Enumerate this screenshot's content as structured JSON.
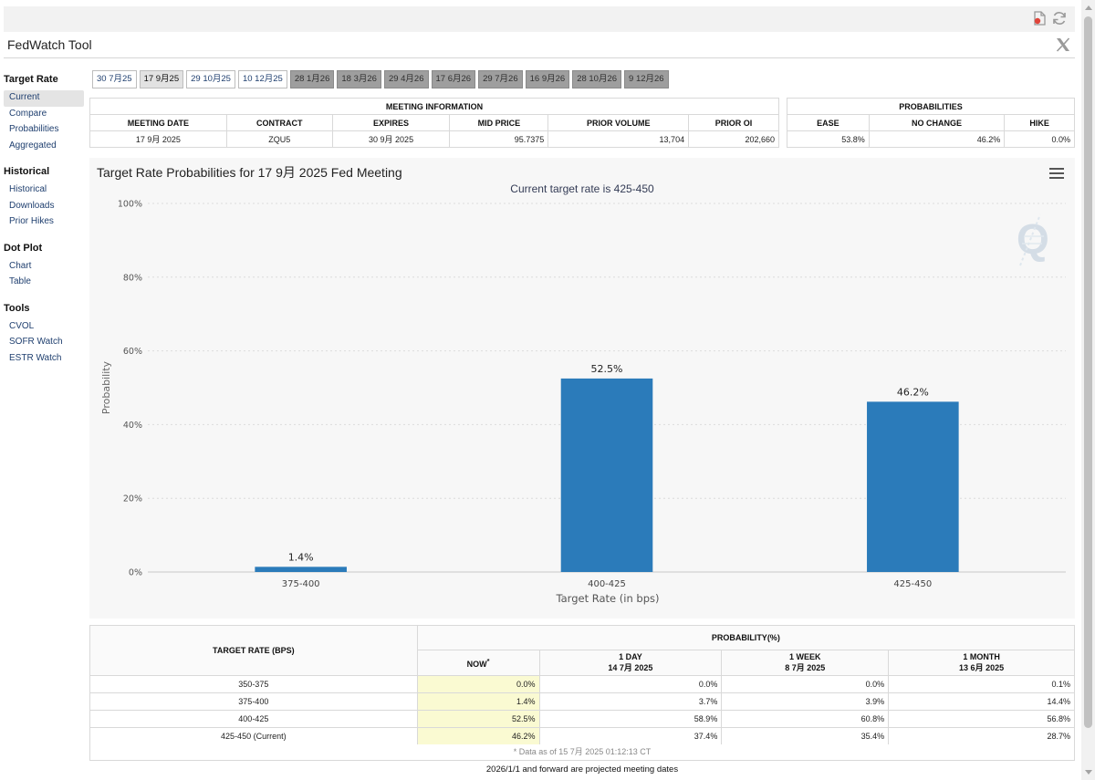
{
  "app": {
    "title": "FedWatch Tool"
  },
  "icons": {
    "pdf": "pdf-icon",
    "refresh": "refresh-icon",
    "x": "x-logo-icon",
    "menu": "hamburger-menu-icon",
    "watermark": "quikstrike-q-icon"
  },
  "sidebar": {
    "groups": [
      {
        "title": "Target Rate",
        "items": [
          "Current",
          "Compare",
          "Probabilities",
          "Aggregated"
        ]
      },
      {
        "title": "Historical",
        "items": [
          "Historical",
          "Downloads",
          "Prior Hikes"
        ]
      },
      {
        "title": "Dot Plot",
        "items": [
          "Chart",
          "Table"
        ]
      },
      {
        "title": "Tools",
        "items": [
          "CVOL",
          "SOFR Watch",
          "ESTR Watch"
        ]
      }
    ]
  },
  "tabs": [
    "30 7月25",
    "17 9月25",
    "29 10月25",
    "10 12月25",
    "28 1月26",
    "18 3月26",
    "29 4月26",
    "17 6月26",
    "29 7月26",
    "16 9月26",
    "28 10月26",
    "9 12月26"
  ],
  "meeting_info": {
    "caption": "MEETING INFORMATION",
    "headers": [
      "MEETING DATE",
      "CONTRACT",
      "EXPIRES",
      "MID PRICE",
      "PRIOR VOLUME",
      "PRIOR OI"
    ],
    "values": [
      "17 9月 2025",
      "ZQU5",
      "30 9月 2025",
      "95.7375",
      "13,704",
      "202,660"
    ]
  },
  "probabilities": {
    "caption": "PROBABILITIES",
    "headers": [
      "EASE",
      "NO CHANGE",
      "HIKE"
    ],
    "values": [
      "53.8%",
      "46.2%",
      "0.0%"
    ]
  },
  "chart": {
    "title": "Target Rate Probabilities for 17 9月 2025 Fed Meeting",
    "subtitle": "Current target rate is 425-450"
  },
  "chart_data": {
    "type": "bar",
    "title": "Target Rate Probabilities for 17 9月 2025 Fed Meeting",
    "subtitle": "Current target rate is 425-450",
    "categories": [
      "375-400",
      "400-425",
      "425-450"
    ],
    "values": [
      1.4,
      52.5,
      46.2
    ],
    "data_labels": [
      "1.4%",
      "52.5%",
      "46.2%"
    ],
    "xlabel": "Target Rate (in bps)",
    "ylabel": "Probability",
    "ylim": [
      0,
      100
    ],
    "yticks": [
      "0%",
      "20%",
      "40%",
      "60%",
      "80%",
      "100%"
    ],
    "bar_color": "#2b7bba",
    "grid": true,
    "legend": "none"
  },
  "prob_table": {
    "header_rate": "TARGET RATE (BPS)",
    "header_prob": "PROBABILITY(%)",
    "columns": [
      {
        "label": "NOW",
        "date": ""
      },
      {
        "label": "1 DAY",
        "date": "14 7月 2025"
      },
      {
        "label": "1 WEEK",
        "date": "8 7月 2025"
      },
      {
        "label": "1 MONTH",
        "date": "13 6月 2025"
      }
    ],
    "rows": [
      {
        "rate": "350-375",
        "values": [
          "0.0%",
          "0.0%",
          "0.0%",
          "0.1%"
        ]
      },
      {
        "rate": "375-400",
        "values": [
          "1.4%",
          "3.7%",
          "3.9%",
          "14.4%"
        ]
      },
      {
        "rate": "400-425",
        "values": [
          "52.5%",
          "58.9%",
          "60.8%",
          "56.8%"
        ]
      },
      {
        "rate": "425-450 (Current)",
        "values": [
          "46.2%",
          "37.4%",
          "35.4%",
          "28.7%"
        ]
      }
    ],
    "footnote": "* Data as of 15 7月 2025 01:12:13 CT",
    "projected_note": "2026/1/1 and forward are projected meeting dates"
  }
}
